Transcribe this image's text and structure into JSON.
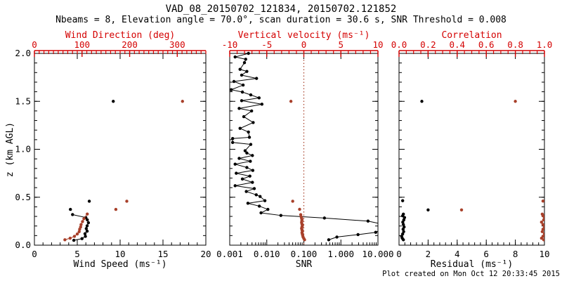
{
  "title": "VAD_08_20150702_121834, 20150702.121852",
  "subtitle": "Nbeams = 8, Elevation angle = 70.0°, scan duration = 30.6 s, SNR Threshold = 0.008",
  "footer": "Plot created on Mon Oct 12 20:33:45 2015",
  "colors": {
    "axis_red": "#d40000",
    "data_red": "#a8402a",
    "black": "#000000",
    "background": "#ffffff"
  },
  "chart_data": {
    "type": "scatter",
    "y_axis": {
      "label": "z (km AGL)",
      "min": 0,
      "max": 2.0,
      "majors": [
        0,
        0.5,
        1.0,
        1.5,
        2.0
      ],
      "labels": [
        "0.0",
        "0.5",
        "1.0",
        "1.5",
        "2.0"
      ],
      "minor_step": 0.1
    },
    "panels": [
      {
        "name": "wind",
        "bottom_axis": {
          "label": "Wind Speed (ms⁻¹)",
          "scale": "linear",
          "min": 0,
          "max": 20,
          "majors": [
            0,
            5,
            10,
            15,
            20
          ],
          "labels": [
            "0",
            "5",
            "10",
            "15",
            "20"
          ],
          "minor_step": 1
        },
        "top_axis": {
          "label": "Wind Direction (deg)",
          "min": 0,
          "max": 360,
          "majors": [
            0,
            100,
            200,
            300
          ],
          "labels": [
            "0",
            "100",
            "200",
            "300"
          ],
          "minor_step": 10
        },
        "series": [
          {
            "name": "wind-speed-profile",
            "axis": "bottom",
            "color": "black",
            "line": true,
            "points": [
              [
                4.6,
                0.051
              ],
              [
                5.55,
                0.068
              ],
              [
                5.95,
                0.092
              ],
              [
                5.9,
                0.119
              ],
              [
                6.15,
                0.146
              ],
              [
                6.05,
                0.173
              ],
              [
                6.15,
                0.202
              ],
              [
                6.3,
                0.234
              ],
              [
                6.17,
                0.264
              ],
              [
                6.0,
                0.288
              ],
              [
                4.45,
                0.319
              ]
            ]
          },
          {
            "name": "wind-speed-outliers",
            "axis": "bottom",
            "color": "black",
            "line": false,
            "points": [
              [
                4.2,
                0.373
              ],
              [
                6.4,
                0.458
              ],
              [
                9.2,
                1.5
              ]
            ]
          },
          {
            "name": "wind-direction-profile",
            "axis": "top",
            "color": "red",
            "line": true,
            "points": [
              [
                64,
                0.056
              ],
              [
                75,
                0.073
              ],
              [
                84,
                0.092
              ],
              [
                90,
                0.117
              ],
              [
                94,
                0.141
              ],
              [
                95,
                0.166
              ],
              [
                97,
                0.19
              ],
              [
                98,
                0.215
              ],
              [
                101,
                0.246
              ],
              [
                104,
                0.276
              ],
              [
                111,
                0.325
              ]
            ]
          },
          {
            "name": "wind-direction-outliers",
            "axis": "top",
            "color": "red",
            "line": false,
            "points": [
              [
                171,
                0.373
              ],
              [
                194,
                0.458
              ],
              [
                311,
                1.5
              ]
            ]
          }
        ]
      },
      {
        "name": "snr",
        "bottom_axis": {
          "label": "SNR",
          "scale": "log",
          "min": 0.001,
          "max": 10,
          "majors": [
            0.001,
            0.01,
            0.1,
            1,
            10
          ],
          "labels": [
            "0.001",
            "0.010",
            "0.100",
            "1.000",
            "10.000"
          ]
        },
        "top_axis": {
          "label": "Vertical velocity (ms⁻¹)",
          "min": -10,
          "max": 10,
          "majors": [
            -10,
            -5,
            0,
            5,
            10
          ],
          "labels": [
            "-10",
            "-5",
            "0",
            "5",
            "10"
          ],
          "minor_step": 1
        },
        "ref_line": {
          "axis": "top",
          "value": 0
        },
        "series": [
          {
            "name": "snr-profile",
            "axis": "bottom",
            "color": "black",
            "line": true,
            "points": [
              [
                0.47,
                0.056
              ],
              [
                0.78,
                0.085
              ],
              [
                2.9,
                0.11
              ],
              [
                8.7,
                0.134
              ],
              [
                13,
                0.17
              ],
              [
                13,
                0.22
              ],
              [
                5.4,
                0.251
              ],
              [
                0.36,
                0.283
              ],
              [
                0.024,
                0.31
              ],
              [
                0.007,
                0.337
              ],
              [
                0.0107,
                0.373
              ],
              [
                0.0063,
                0.407
              ],
              [
                0.0031,
                0.437
              ],
              [
                0.0089,
                0.464
              ],
              [
                0.0066,
                0.508
              ],
              [
                0.0052,
                0.525
              ],
              [
                0.0028,
                0.56
              ],
              [
                0.0046,
                0.59
              ],
              [
                0.0014,
                0.62
              ],
              [
                0.0041,
                0.655
              ],
              [
                0.0022,
                0.69
              ],
              [
                0.0035,
                0.72
              ],
              [
                0.0015,
                0.75
              ],
              [
                0.0042,
                0.78
              ],
              [
                0.0029,
                0.81
              ],
              [
                0.0014,
                0.845
              ],
              [
                0.0036,
                0.875
              ],
              [
                0.0018,
                0.905
              ],
              [
                0.0041,
                0.935
              ],
              [
                0.0029,
                0.961
              ],
              [
                0.0026,
                0.985
              ],
              [
                0.0037,
                1.051
              ],
              [
                0.0012,
                1.071
              ],
              [
                0.0012,
                1.112
              ],
              [
                0.0034,
                1.125
              ],
              [
                0.0032,
                1.18
              ],
              [
                0.0019,
                1.218
              ],
              [
                0.0043,
                1.279
              ],
              [
                0.0024,
                1.34
              ],
              [
                0.0039,
                1.4
              ],
              [
                0.0018,
                1.426
              ],
              [
                0.0074,
                1.47
              ],
              [
                0.0021,
                1.507
              ],
              [
                0.0062,
                1.536
              ],
              [
                0.0037,
                1.567
              ],
              [
                0.0022,
                1.597
              ],
              [
                0.0011,
                1.621
              ],
              [
                0.0023,
                1.67
              ],
              [
                0.0013,
                1.707
              ],
              [
                0.0053,
                1.739
              ],
              [
                0.0021,
                1.773
              ],
              [
                0.0029,
                1.812
              ],
              [
                0.0019,
                1.834
              ],
              [
                0.0025,
                1.903
              ],
              [
                0.0027,
                1.939
              ],
              [
                0.0014,
                1.963
              ],
              [
                0.0032,
                2.0
              ]
            ]
          },
          {
            "name": "vertical-velocity-profile",
            "axis": "top",
            "color": "red",
            "line": true,
            "points": [
              [
                0.1,
                0.056
              ],
              [
                0.0,
                0.07
              ],
              [
                -0.1,
                0.085
              ],
              [
                -0.15,
                0.1
              ],
              [
                -0.2,
                0.115
              ],
              [
                -0.25,
                0.13
              ],
              [
                -0.2,
                0.145
              ],
              [
                -0.25,
                0.16
              ],
              [
                -0.3,
                0.175
              ],
              [
                -0.25,
                0.19
              ],
              [
                -0.2,
                0.205
              ],
              [
                -0.25,
                0.22
              ],
              [
                -0.3,
                0.235
              ],
              [
                -0.28,
                0.25
              ],
              [
                -0.25,
                0.265
              ],
              [
                -0.3,
                0.28
              ],
              [
                -0.35,
                0.295
              ],
              [
                -0.42,
                0.318
              ]
            ]
          },
          {
            "name": "vertical-velocity-outliers",
            "axis": "top",
            "color": "red",
            "line": false,
            "points": [
              [
                -0.57,
                0.374
              ],
              [
                -1.5,
                0.458
              ],
              [
                -1.74,
                1.5
              ]
            ]
          }
        ]
      },
      {
        "name": "residual",
        "bottom_axis": {
          "label": "Residual (ms⁻¹)",
          "scale": "linear",
          "min": 0,
          "max": 10,
          "majors": [
            0,
            2,
            4,
            6,
            8,
            10
          ],
          "labels": [
            "0",
            "2",
            "4",
            "6",
            "8",
            "10"
          ],
          "minor_step": 0.4
        },
        "top_axis": {
          "label": "Correlation",
          "min": 0,
          "max": 1,
          "majors": [
            0,
            0.2,
            0.4,
            0.6,
            0.8,
            1.0
          ],
          "labels": [
            "0.0",
            "0.2",
            "0.4",
            "0.6",
            "0.8",
            "1.0"
          ],
          "minor_step": 0.05
        },
        "series": [
          {
            "name": "residual-profile",
            "axis": "bottom",
            "color": "black",
            "line": true,
            "points": [
              [
                0.3,
                0.056
              ],
              [
                0.22,
                0.073
              ],
              [
                0.18,
                0.092
              ],
              [
                0.25,
                0.117
              ],
              [
                0.32,
                0.141
              ],
              [
                0.28,
                0.166
              ],
              [
                0.35,
                0.19
              ],
              [
                0.3,
                0.215
              ],
              [
                0.26,
                0.24
              ],
              [
                0.33,
                0.264
              ],
              [
                0.38,
                0.288
              ],
              [
                0.25,
                0.306
              ],
              [
                0.3,
                0.324
              ]
            ]
          },
          {
            "name": "residual-outliers",
            "axis": "bottom",
            "color": "black",
            "line": false,
            "points": [
              [
                2.0,
                0.368
              ],
              [
                0.25,
                0.464
              ],
              [
                1.57,
                1.5
              ]
            ]
          },
          {
            "name": "correlation-profile",
            "axis": "top",
            "color": "red",
            "line": true,
            "points": [
              [
                0.995,
                0.056
              ],
              [
                0.98,
                0.073
              ],
              [
                0.99,
                0.092
              ],
              [
                1.0,
                0.117
              ],
              [
                0.985,
                0.141
              ],
              [
                0.99,
                0.166
              ],
              [
                1.0,
                0.19
              ],
              [
                0.99,
                0.215
              ],
              [
                0.98,
                0.24
              ],
              [
                0.995,
                0.264
              ],
              [
                1.0,
                0.288
              ],
              [
                0.99,
                0.306
              ],
              [
                0.985,
                0.324
              ]
            ]
          },
          {
            "name": "correlation-outliers",
            "axis": "top",
            "color": "red",
            "line": false,
            "points": [
              [
                0.43,
                0.368
              ],
              [
                0.99,
                0.46
              ],
              [
                0.8,
                1.5
              ]
            ]
          }
        ]
      }
    ]
  }
}
